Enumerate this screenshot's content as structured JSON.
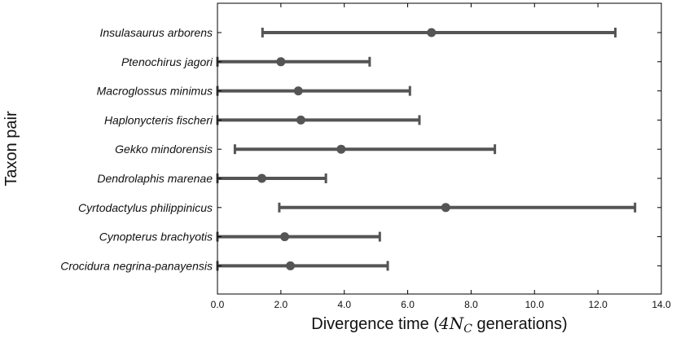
{
  "chart_data": {
    "type": "errorbar",
    "orientation": "horizontal",
    "categories": [
      "Insulasaurus arborens",
      "Ptenochirus jagori",
      "Macroglossus minimus",
      "Haplonycteris fischeri",
      "Gekko mindorensis",
      "Dendrolaphis marenae",
      "Cyrtodactylus philippinicus",
      "Cynopterus brachyotis",
      "Crocidura negrina-panayensis"
    ],
    "series": [
      {
        "points": [
          6.75,
          2.0,
          2.55,
          2.63,
          3.9,
          1.4,
          7.2,
          2.12,
          2.3
        ],
        "lower": [
          1.42,
          0.0,
          0.0,
          0.0,
          0.55,
          0.0,
          1.95,
          0.0,
          0.0
        ],
        "upper": [
          12.55,
          4.8,
          6.07,
          6.37,
          8.75,
          3.42,
          13.17,
          5.12,
          5.37
        ]
      }
    ],
    "xlabel_prefix": "Divergence time (",
    "xlabel_math_coef": "4",
    "xlabel_math_var": "N",
    "xlabel_math_sub": "C",
    "xlabel_suffix": " generations)",
    "ylabel": "Taxon pair",
    "xlim": [
      0,
      14
    ],
    "xticks": [
      0,
      2,
      4,
      6,
      8,
      10,
      12,
      14
    ],
    "xtick_labels": [
      "0.0",
      "2.0",
      "4.0",
      "6.0",
      "8.0",
      "10.0",
      "12.0",
      "14.0"
    ],
    "grid": false,
    "colors": {
      "marker": "#555555",
      "axes": "#000000"
    }
  }
}
